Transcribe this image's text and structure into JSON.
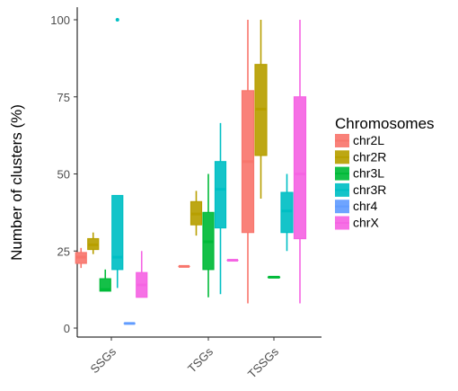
{
  "chart_data": {
    "type": "boxplot",
    "title": "",
    "xlabel": "",
    "ylabel": "Number of clusters (%)",
    "ylim": [
      -4,
      102
    ],
    "yticks": [
      0,
      25,
      50,
      75,
      100
    ],
    "categories": [
      "SSGs",
      "TSGs",
      "TSSGs"
    ],
    "legend": {
      "title": "Chromosomes",
      "position": "right"
    },
    "series": [
      {
        "name": "chr2L",
        "color": "#F8766D",
        "boxes": [
          {
            "category": "SSGs",
            "min": 19.5,
            "q1": 21,
            "median": 23,
            "q3": 24.5,
            "max": 26,
            "outliers": []
          },
          {
            "category": "TSGs",
            "min": 20,
            "q1": 20,
            "median": 20,
            "q3": 20,
            "max": 20,
            "outliers": []
          },
          {
            "category": "TSSGs",
            "min": 8,
            "q1": 31,
            "median": 54,
            "q3": 77,
            "max": 100,
            "outliers": []
          }
        ]
      },
      {
        "name": "chr2R",
        "color": "#B79F00",
        "boxes": [
          {
            "category": "SSGs",
            "min": 24,
            "q1": 25.5,
            "median": 27,
            "q3": 29,
            "max": 31,
            "outliers": []
          },
          {
            "category": "TSGs",
            "min": 30,
            "q1": 33.5,
            "median": 37,
            "q3": 41,
            "max": 44.5,
            "outliers": []
          },
          {
            "category": "TSSGs",
            "min": 42,
            "q1": 56,
            "median": 71,
            "q3": 85.5,
            "max": 100,
            "outliers": []
          }
        ]
      },
      {
        "name": "chr3L",
        "color": "#00BA38",
        "boxes": [
          {
            "category": "SSGs",
            "min": 12,
            "q1": 12,
            "median": 12.5,
            "q3": 16,
            "max": 19,
            "outliers": []
          },
          {
            "category": "TSGs",
            "min": 10,
            "q1": 19,
            "median": 28,
            "q3": 37.5,
            "max": 50,
            "outliers": []
          },
          {
            "category": "TSSGs",
            "min": 16.5,
            "q1": 16.5,
            "median": 16.5,
            "q3": 16.5,
            "max": 16.5,
            "outliers": []
          }
        ]
      },
      {
        "name": "chr3R",
        "color": "#00BFC4",
        "boxes": [
          {
            "category": "SSGs",
            "min": 13,
            "q1": 19,
            "median": 23,
            "q3": 43,
            "max": 43,
            "outliers": [
              100
            ]
          },
          {
            "category": "TSGs",
            "min": 11,
            "q1": 32.5,
            "median": 45,
            "q3": 54,
            "max": 66.5,
            "outliers": []
          },
          {
            "category": "TSSGs",
            "min": 25,
            "q1": 31,
            "median": 38,
            "q3": 44,
            "max": 50,
            "outliers": []
          }
        ]
      },
      {
        "name": "chr4",
        "color": "#619CFF",
        "boxes": [
          {
            "category": "SSGs",
            "min": 1.5,
            "q1": 1.5,
            "median": 1.5,
            "q3": 1.5,
            "max": 1.5,
            "outliers": []
          }
        ]
      },
      {
        "name": "chrX",
        "color": "#F564E3",
        "boxes": [
          {
            "category": "SSGs",
            "min": 10,
            "q1": 10,
            "median": 14,
            "q3": 18,
            "max": 25,
            "outliers": []
          },
          {
            "category": "TSGs",
            "min": 22,
            "q1": 22,
            "median": 22,
            "q3": 22,
            "max": 22,
            "outliers": []
          },
          {
            "category": "TSSGs",
            "min": 8,
            "q1": 29,
            "median": 50,
            "q3": 75,
            "max": 100,
            "outliers": []
          }
        ]
      }
    ],
    "grid": false
  }
}
